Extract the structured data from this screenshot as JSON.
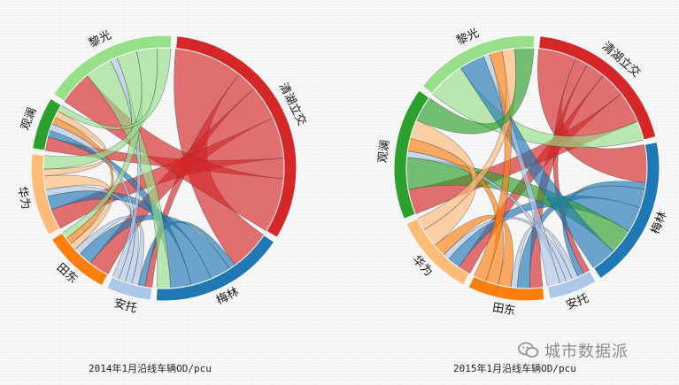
{
  "chart_data": [
    {
      "type": "chord",
      "title": "2014年1月沿线车辆OD/pcu",
      "groups": [
        "清湖立交",
        "梅林",
        "安托",
        "田东",
        "华为",
        "观澜",
        "黎光"
      ],
      "colors": [
        "#d62728",
        "#1f77b4",
        "#aec7e8",
        "#ff7f0e",
        "#ffbb78",
        "#2ca02c",
        "#98df8a"
      ],
      "matrix": [
        [
          0,
          10,
          3,
          5,
          6,
          3,
          8
        ],
        [
          6,
          0,
          1,
          3,
          3,
          3,
          2
        ],
        [
          1,
          1,
          0,
          1,
          1,
          1,
          1
        ],
        [
          3,
          2,
          1,
          0,
          1,
          1,
          1
        ],
        [
          3,
          2,
          1,
          2,
          0,
          1,
          2
        ],
        [
          2,
          1,
          1,
          1,
          1,
          0,
          1
        ],
        [
          5,
          4,
          1,
          3,
          3,
          2,
          0
        ]
      ]
    },
    {
      "type": "chord",
      "title": "2015年1月沿线车辆OD/pcu",
      "groups": [
        "清湖立交",
        "梅林",
        "安托",
        "田东",
        "华为",
        "观澜",
        "黎光"
      ],
      "colors": [
        "#d62728",
        "#1f77b4",
        "#aec7e8",
        "#ff7f0e",
        "#ffbb78",
        "#2ca02c",
        "#98df8a"
      ],
      "matrix": [
        [
          0,
          6,
          2,
          3,
          4,
          5,
          3
        ],
        [
          6,
          0,
          1,
          3,
          4,
          4,
          4
        ],
        [
          1,
          1,
          0,
          1,
          1,
          1,
          2
        ],
        [
          2,
          2,
          1,
          0,
          2,
          2,
          2
        ],
        [
          2,
          2,
          1,
          2,
          0,
          3,
          2
        ],
        [
          4,
          5,
          1,
          2,
          3,
          0,
          4
        ],
        [
          6,
          4,
          1,
          2,
          2,
          3,
          0
        ]
      ]
    }
  ],
  "watermark": {
    "text": "城市数据派",
    "icon": "wechat-icon"
  }
}
